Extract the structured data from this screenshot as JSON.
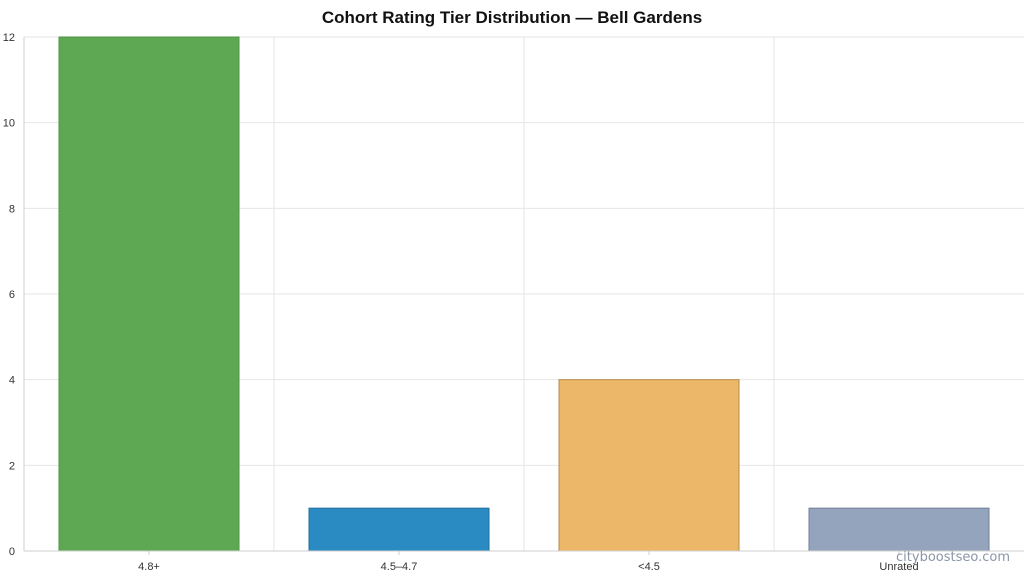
{
  "chart_data": {
    "type": "bar",
    "title": "Cohort Rating Tier Distribution — Bell Gardens",
    "categories": [
      "4.8+",
      "4.5–4.7",
      "<4.5",
      "Unrated"
    ],
    "values": [
      12,
      1,
      4,
      1
    ],
    "colors": [
      "#5fa853",
      "#2a8ac2",
      "#edb76a",
      "#94a4bc"
    ],
    "edge_colors": [
      "#4e9444",
      "#1f6f9e",
      "#b68a4c",
      "#6f7f99"
    ],
    "ylim": [
      0,
      12
    ],
    "yticks": [
      0,
      2,
      4,
      6,
      8,
      10,
      12
    ],
    "grid": true,
    "legend": "none",
    "xlabel": "",
    "ylabel": ""
  },
  "watermark": "cityboostseo.com"
}
